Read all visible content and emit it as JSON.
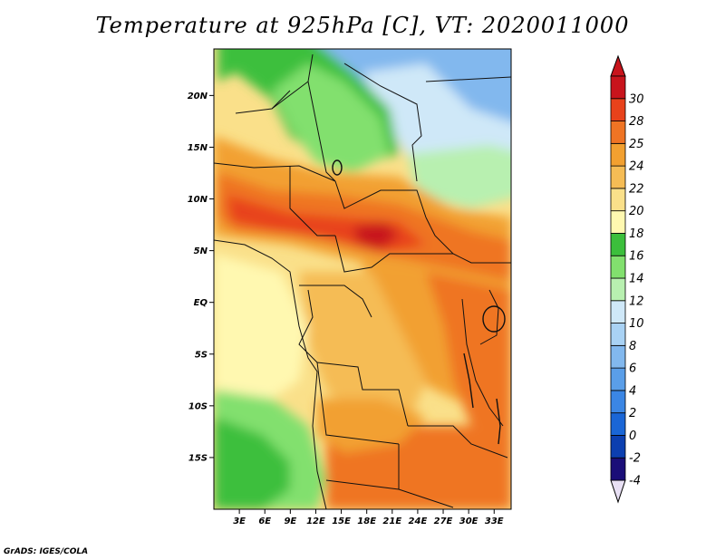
{
  "title": "Temperature at 925hPa [C], VT: 2020011000",
  "credit": "GrADS: IGES/COLA",
  "map": {
    "lon_range": [
      0,
      35
    ],
    "lat_range": [
      -20,
      24.5
    ],
    "lon_ticks": [
      {
        "value": 3,
        "label": "3E"
      },
      {
        "value": 6,
        "label": "6E"
      },
      {
        "value": 9,
        "label": "9E"
      },
      {
        "value": 12,
        "label": "12E"
      },
      {
        "value": 15,
        "label": "15E"
      },
      {
        "value": 18,
        "label": "18E"
      },
      {
        "value": 21,
        "label": "21E"
      },
      {
        "value": 24,
        "label": "24E"
      },
      {
        "value": 27,
        "label": "27E"
      },
      {
        "value": 30,
        "label": "30E"
      },
      {
        "value": 33,
        "label": "33E"
      }
    ],
    "lat_ticks": [
      {
        "value": 20,
        "label": "20N"
      },
      {
        "value": 15,
        "label": "15N"
      },
      {
        "value": 10,
        "label": "10N"
      },
      {
        "value": 5,
        "label": "5N"
      },
      {
        "value": 0,
        "label": "EQ"
      },
      {
        "value": -5,
        "label": "5S"
      },
      {
        "value": -10,
        "label": "10S"
      },
      {
        "value": -15,
        "label": "15S"
      }
    ]
  },
  "colorbar": {
    "levels": [
      "-4",
      "-2",
      "0",
      "2",
      "4",
      "6",
      "8",
      "10",
      "12",
      "14",
      "16",
      "18",
      "20",
      "22",
      "24",
      "25",
      "28",
      "30"
    ],
    "colors": [
      "#1a0e78",
      "#0c3fb0",
      "#1a66d6",
      "#3b86e4",
      "#5a9ee8",
      "#82b8ee",
      "#a9d2f4",
      "#cfe8f8",
      "#b8f0b0",
      "#82e06e",
      "#3cbf3c",
      "#fff8b0",
      "#fae08a",
      "#f5bc55",
      "#f2a030",
      "#ef7424",
      "#e8421b",
      "#c8141c"
    ],
    "under_color": "#e8e0f4",
    "over_color": "#c8141c"
  },
  "colors": {
    "green": "#3cbf3c",
    "light_green": "#82e06e",
    "pale_green": "#b8f0b0",
    "pale_yellow": "#fff8b0",
    "yellow": "#fae08a",
    "light_orange": "#f5bc55",
    "orange": "#f2a030",
    "deep_orange": "#ef7424",
    "red_orange": "#e8421b",
    "red": "#c8141c",
    "light_blue": "#a9d2f4",
    "blue": "#82b8ee",
    "pale_blue": "#cfe8f8"
  }
}
